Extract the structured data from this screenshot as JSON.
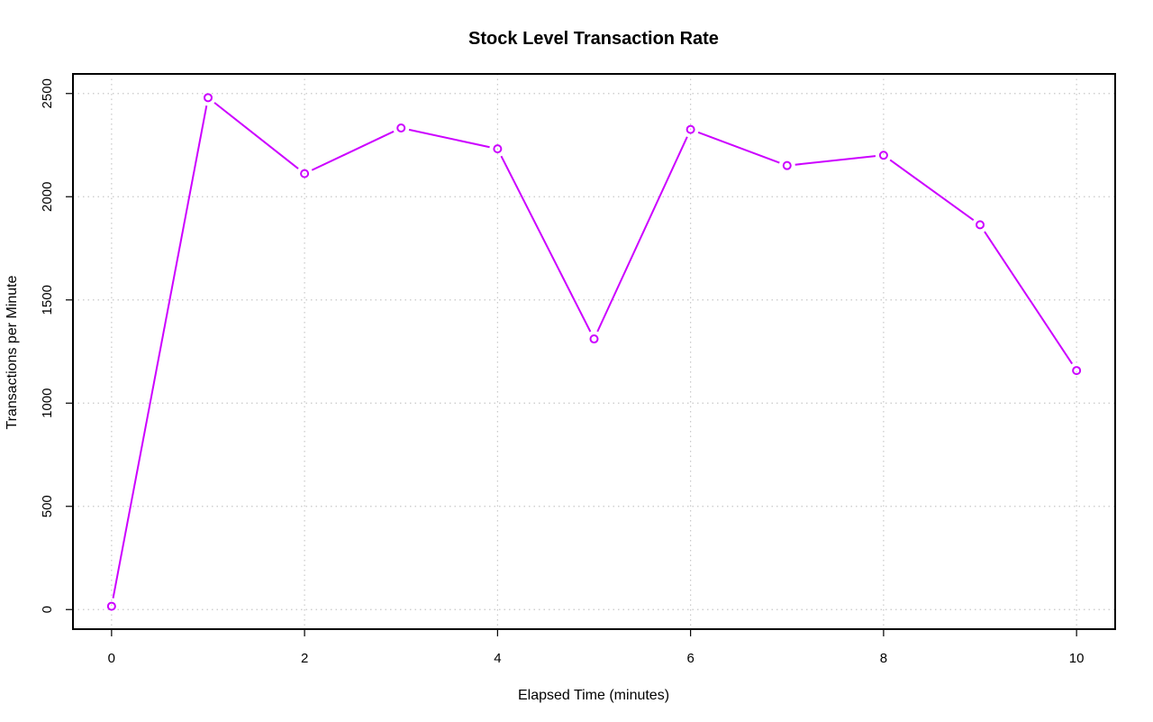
{
  "chart_data": {
    "type": "line",
    "title": "Stock Level Transaction Rate",
    "xlabel": "Elapsed Time (minutes)",
    "ylabel": "Transactions per Minute",
    "xlim": [
      -0.4,
      10.4
    ],
    "ylim": [
      -95,
      2595
    ],
    "x_ticks": [
      0,
      2,
      4,
      6,
      8,
      10
    ],
    "y_ticks": [
      0,
      500,
      1000,
      1500,
      2000,
      2500
    ],
    "x_tick_labels": [
      "0",
      "2",
      "4",
      "6",
      "8",
      "10"
    ],
    "y_tick_labels": [
      "0",
      "500",
      "1000",
      "1500",
      "2000",
      "2500"
    ],
    "grid": true,
    "x": [
      0,
      1,
      2,
      3,
      4,
      5,
      6,
      7,
      8,
      9,
      10
    ],
    "series": [
      {
        "values": [
          16,
          2480,
          2112,
          2333,
          2232,
          1311,
          2326,
          2151,
          2201,
          1864,
          1158
        ],
        "color": "#cc00ff",
        "marker": "open-circle"
      }
    ]
  }
}
